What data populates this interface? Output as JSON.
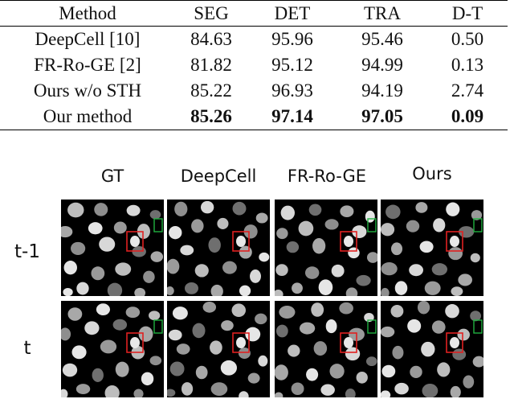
{
  "table": {
    "headers": [
      "Method",
      "SEG",
      "DET",
      "TRA",
      "D-T"
    ],
    "rows": [
      {
        "method": "DeepCell [10]",
        "seg": "84.63",
        "det": "95.96",
        "tra": "95.46",
        "dt": "0.50"
      },
      {
        "method": "FR-Ro-GE [2]",
        "seg": "81.82",
        "det": "95.12",
        "tra": "94.99",
        "dt": "0.13"
      },
      {
        "method": "Ours w/o STH",
        "seg": "85.22",
        "det": "96.93",
        "tra": "94.19",
        "dt": "2.74"
      },
      {
        "method": "Our method",
        "seg": "85.26",
        "det": "97.14",
        "tra": "97.05",
        "dt": "0.09"
      }
    ]
  },
  "figure": {
    "columns": [
      "GT",
      "DeepCell",
      "FR-Ro-GE",
      "Ours"
    ],
    "rows": [
      "t-1",
      "t"
    ],
    "colors": {
      "background": "#000000",
      "red_box": "#e02020",
      "green_box": "#20b040"
    }
  }
}
